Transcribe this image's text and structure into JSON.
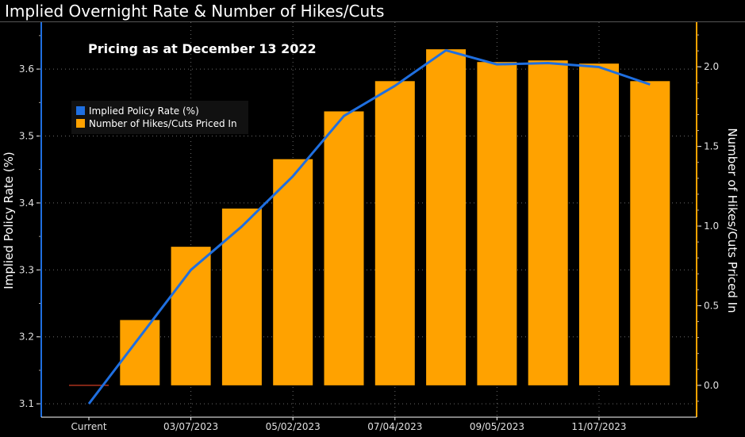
{
  "window": {
    "title": "Implied Overnight Rate & Number of Hikes/Cuts"
  },
  "chart_data": {
    "type": "bar",
    "title": "Implied Overnight Rate & Number of Hikes/Cuts",
    "annotation": "Pricing as at December 13 2022",
    "ylabel_left": "Implied Policy Rate (%)",
    "ylabel_right": "Number of Hikes/Cuts Priced In",
    "x_tick_labels": [
      {
        "index": 0,
        "label": "Current"
      },
      {
        "index": 2,
        "label": "03/07/2023"
      },
      {
        "index": 4,
        "label": "05/02/2023"
      },
      {
        "index": 6,
        "label": "07/04/2023"
      },
      {
        "index": 8,
        "label": "09/05/2023"
      },
      {
        "index": 10,
        "label": "11/07/2023"
      }
    ],
    "y_left": {
      "lim": [
        3.08,
        3.67
      ],
      "ticks": [
        "3.1",
        "3.2",
        "3.3",
        "3.4",
        "3.5",
        "3.6"
      ]
    },
    "y_right": {
      "lim": [
        -0.2,
        2.28
      ],
      "ticks": [
        "0.0",
        "0.5",
        "1.0",
        "1.5",
        "2.0"
      ]
    },
    "legend": {
      "placement": "top-left"
    },
    "grid": true,
    "series": [
      {
        "name": "Implied Policy Rate (%)",
        "kind": "line",
        "axis": "left",
        "color": "#1f6fe0",
        "values": [
          3.1,
          3.2,
          3.3,
          3.365,
          3.44,
          3.53,
          3.575,
          3.628,
          3.607,
          3.609,
          3.603,
          3.577
        ]
      },
      {
        "name": "Number of Hikes/Cuts Priced In",
        "kind": "bar",
        "axis": "right",
        "color": "#ffa200",
        "values": [
          0.0,
          0.41,
          0.87,
          1.11,
          1.42,
          1.72,
          1.91,
          2.11,
          2.03,
          2.04,
          2.02,
          1.91
        ]
      }
    ]
  }
}
